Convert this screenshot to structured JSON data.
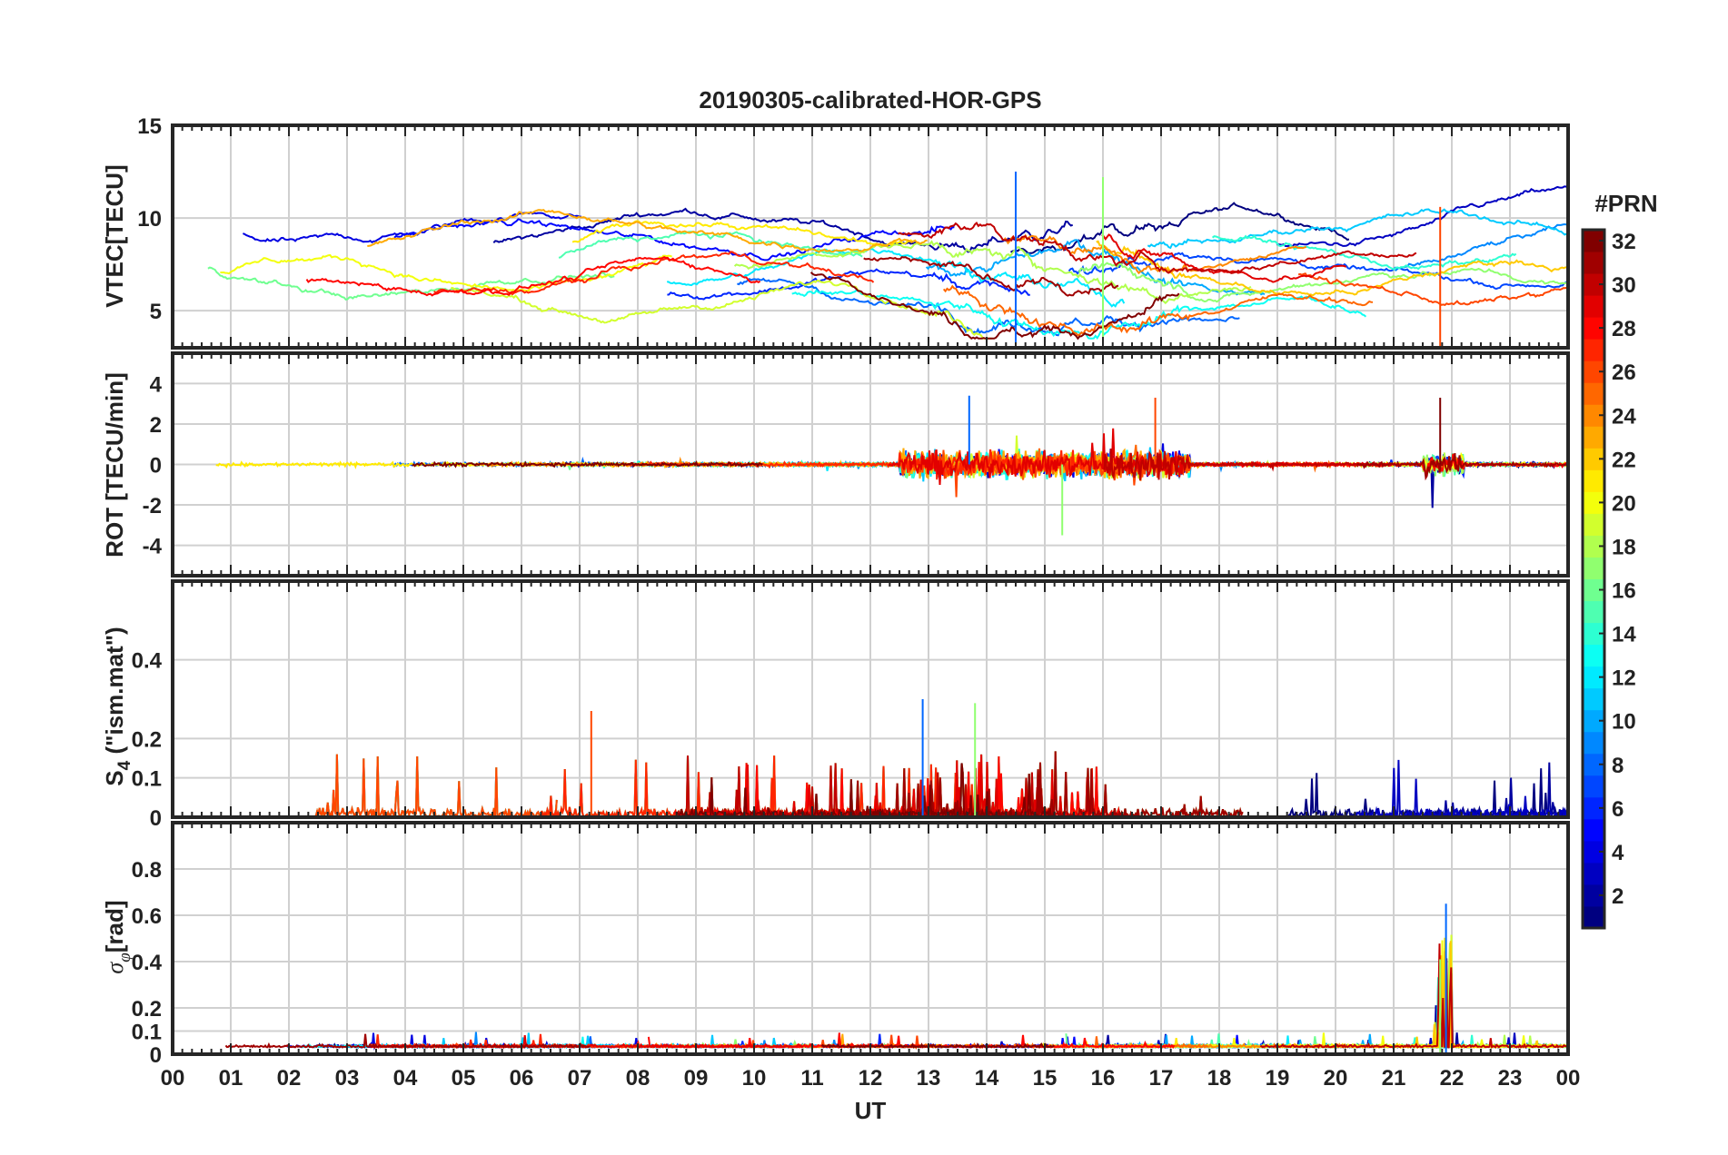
{
  "title": "20190305-calibrated-HOR-GPS",
  "chart_data": [
    {
      "type": "line",
      "ylabel": "VTEC[TECU]",
      "ylim": [
        3,
        15
      ],
      "yticks": [
        5,
        10,
        15
      ],
      "xlim": [
        0,
        24
      ],
      "grid": true,
      "series_hint": "multiple PRN traces, colored by #PRN",
      "value_range": [
        3.5,
        12.5
      ],
      "notable": [
        {
          "x": 14.5,
          "y": 12.5
        },
        {
          "x": 16.0,
          "y": 12.2
        },
        {
          "x": 21.8,
          "y": 10.6
        }
      ]
    },
    {
      "type": "line",
      "ylabel": "ROT [TECU/min]",
      "ylim": [
        -5.5,
        5.5
      ],
      "yticks": [
        -4,
        -2,
        0,
        2,
        4
      ],
      "xlim": [
        0,
        24
      ],
      "grid": true,
      "value_range": [
        -3.5,
        3.5
      ],
      "notable": [
        {
          "x": 13.7,
          "y": 3.4
        },
        {
          "x": 15.3,
          "y": -3.5
        },
        {
          "x": 16.9,
          "y": 3.3
        },
        {
          "x": 21.8,
          "y": 3.3
        }
      ]
    },
    {
      "type": "line",
      "ylabel": "S4 (\"ism.mat\")",
      "ylim": [
        0,
        0.6
      ],
      "yticks": [
        0,
        0.1,
        0.2,
        0.4
      ],
      "xlim": [
        0,
        24
      ],
      "grid": true,
      "value_range": [
        0,
        0.3
      ],
      "notable": [
        {
          "x": 12.9,
          "y": 0.3
        },
        {
          "x": 13.8,
          "y": 0.29
        },
        {
          "x": 7.2,
          "y": 0.27
        }
      ]
    },
    {
      "type": "line",
      "ylabel": "σφ[rad]",
      "ylim": [
        0,
        1
      ],
      "yticks": [
        0,
        0.1,
        0.2,
        0.4,
        0.6,
        0.8
      ],
      "xlim": [
        0,
        24
      ],
      "grid": true,
      "value_range": [
        0,
        0.65
      ],
      "notable": [
        {
          "x": 21.9,
          "y": 0.65
        },
        {
          "x": 21.8,
          "y": 0.41
        }
      ]
    }
  ],
  "xaxis": {
    "label": "UT",
    "ticks": [
      "00",
      "01",
      "02",
      "03",
      "04",
      "05",
      "06",
      "07",
      "08",
      "09",
      "10",
      "11",
      "12",
      "13",
      "14",
      "15",
      "16",
      "17",
      "18",
      "19",
      "20",
      "21",
      "22",
      "23",
      "00"
    ]
  },
  "colorbar": {
    "label": "#PRN",
    "range": [
      1,
      32
    ],
    "ticks": [
      2,
      4,
      6,
      8,
      10,
      12,
      14,
      16,
      18,
      20,
      22,
      24,
      26,
      28,
      30,
      32
    ]
  },
  "ylabels_render": {
    "vtec": "VTEC[TECU]",
    "rot": "ROT [TECU/min]",
    "s4_main": "S",
    "s4_sub": "4",
    "s4_rest": " (\"ism.mat\")",
    "sigma_main": "σ",
    "sigma_sub": "φ",
    "sigma_rest": "[rad]"
  }
}
